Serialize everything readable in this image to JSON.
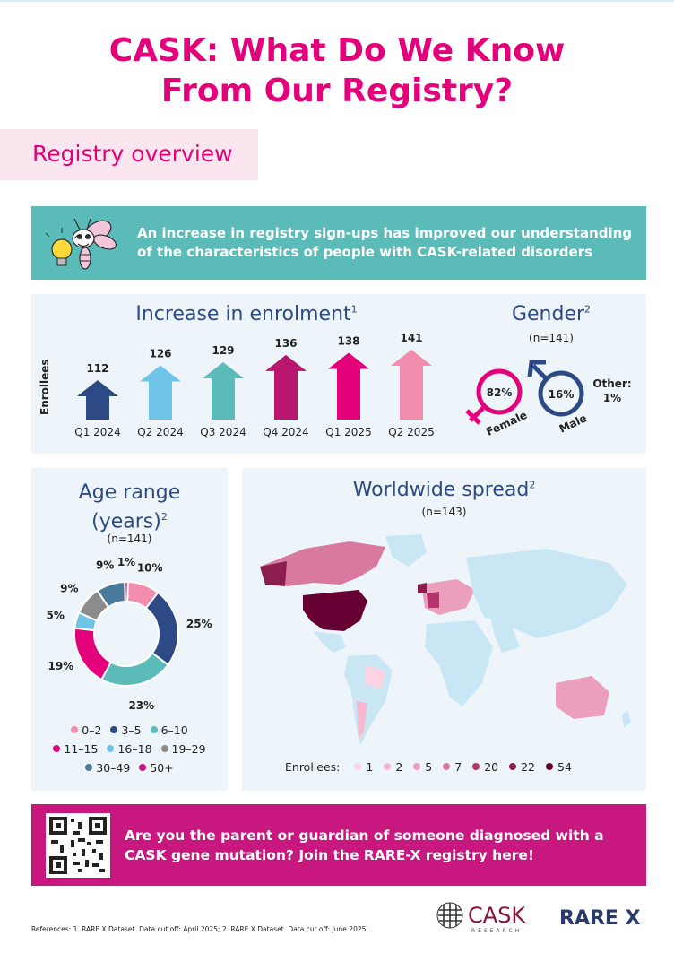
{
  "title_line1": "CASK: What Do We Know",
  "title_line2": "From Our Registry?",
  "section": "Registry overview",
  "banner_text": "An increase in registry sign-ups has improved our understanding of the characteristics of people with CASK-related disorders",
  "enrolment": {
    "title": "Increase in enrolment",
    "title_sup": "1",
    "ylabel": "Enrollees"
  },
  "gender": {
    "title": "Gender",
    "title_sup": "2",
    "n": "(n=141)",
    "female_pct": "82%",
    "female_label": "Female",
    "male_pct": "16%",
    "male_label": "Male",
    "other_label": "Other:",
    "other_pct": "1%",
    "colors": {
      "female": "#e4007a",
      "male": "#2e4a86"
    }
  },
  "age": {
    "title_line1": "Age range",
    "title_line2": "(years)",
    "title_sup": "2",
    "n": "(n=141)"
  },
  "world": {
    "title": "Worldwide spread",
    "title_sup": "2",
    "n": "(n=143)",
    "legend_title": "Enrollees:",
    "legend": [
      {
        "label": "1",
        "color": "#fbd3e3"
      },
      {
        "label": "2",
        "color": "#f4b8cf"
      },
      {
        "label": "5",
        "color": "#ec9fbc"
      },
      {
        "label": "7",
        "color": "#d9799f"
      },
      {
        "label": "20",
        "color": "#b8326d"
      },
      {
        "label": "22",
        "color": "#8c1e4f"
      },
      {
        "label": "54",
        "color": "#660033"
      }
    ]
  },
  "cta_text": "Are you the parent or guardian of someone diagnosed with a CASK gene mutation? Join the RARE-X registry here!",
  "references": "References: 1. RARE X Dataset. Data cut off: April 2025; 2. RARE X Dataset. Data cut off: June 2025.",
  "logo_cask": "CASK",
  "logo_cask_sub": "RESEARCH",
  "logo_rarex": "RARE X",
  "chart_data": [
    {
      "type": "bar",
      "title": "Increase in enrolment",
      "ylabel": "Enrollees",
      "categories": [
        "Q1 2024",
        "Q2 2024",
        "Q3 2024",
        "Q4 2024",
        "Q1 2025",
        "Q2 2025"
      ],
      "values": [
        112,
        126,
        129,
        136,
        138,
        141
      ],
      "colors": [
        "#2e4a86",
        "#6ec5e8",
        "#5abbb8",
        "#b8166f",
        "#e4007a",
        "#f28db0"
      ]
    },
    {
      "type": "pie",
      "title": "Age range (years)",
      "categories": [
        "0–2",
        "3–5",
        "6–10",
        "11–15",
        "16–18",
        "19–29",
        "30–49",
        "50+"
      ],
      "values": [
        10,
        25,
        23,
        19,
        5,
        9,
        9,
        1
      ],
      "labels": [
        "10%",
        "25%",
        "23%",
        "19%",
        "5%",
        "9%",
        "9%",
        "1%"
      ],
      "colors": [
        "#f28db0",
        "#2e4a86",
        "#5abbb8",
        "#e4007a",
        "#6ec5e8",
        "#8c8c8c",
        "#4a7a9b",
        "#c8187f"
      ]
    }
  ]
}
